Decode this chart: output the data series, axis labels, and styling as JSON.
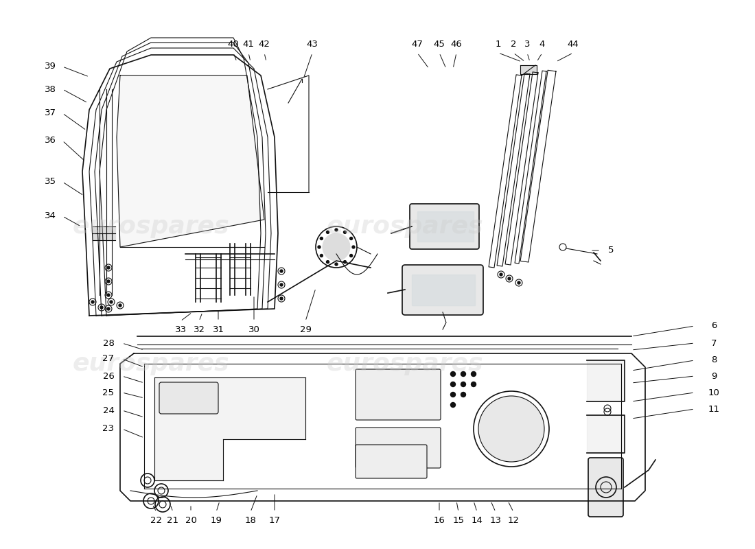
{
  "bg_color": "#ffffff",
  "watermark_text": "eurospares",
  "line_color": "#111111",
  "watermark_color": "#cccccc",
  "watermark_alpha": 0.35
}
